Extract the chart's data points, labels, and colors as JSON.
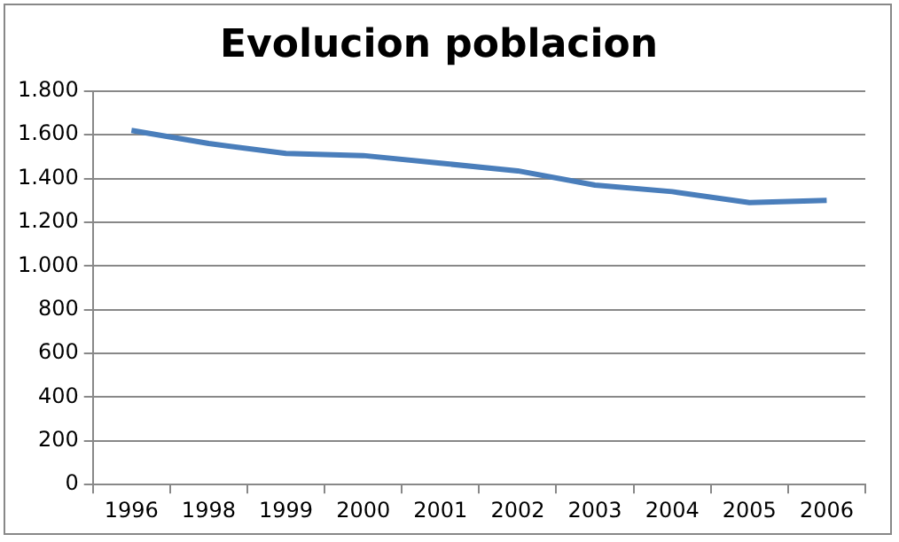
{
  "chart_data": {
    "type": "line",
    "title": "Evolucion poblacion",
    "categories": [
      "1996",
      "1998",
      "1999",
      "2000",
      "2001",
      "2002",
      "2003",
      "2004",
      "2005",
      "2006"
    ],
    "series": [
      {
        "color": "#4a7ebb",
        "values": [
          1620,
          1560,
          1515,
          1505,
          1470,
          1435,
          1370,
          1340,
          1290,
          1300
        ]
      }
    ],
    "ylim": [
      0,
      1800
    ],
    "yticks": [
      {
        "value": 0,
        "label": "0"
      },
      {
        "value": 200,
        "label": "200"
      },
      {
        "value": 400,
        "label": "400"
      },
      {
        "value": 600,
        "label": "600"
      },
      {
        "value": 800,
        "label": "800"
      },
      {
        "value": 1000,
        "label": "1.000"
      },
      {
        "value": 1200,
        "label": "1.200"
      },
      {
        "value": 1400,
        "label": "1.400"
      },
      {
        "value": 1600,
        "label": "1.600"
      },
      {
        "value": 1800,
        "label": "1.800"
      }
    ],
    "grid": "y",
    "legend": false,
    "marker": "none",
    "line_style": "solid"
  }
}
